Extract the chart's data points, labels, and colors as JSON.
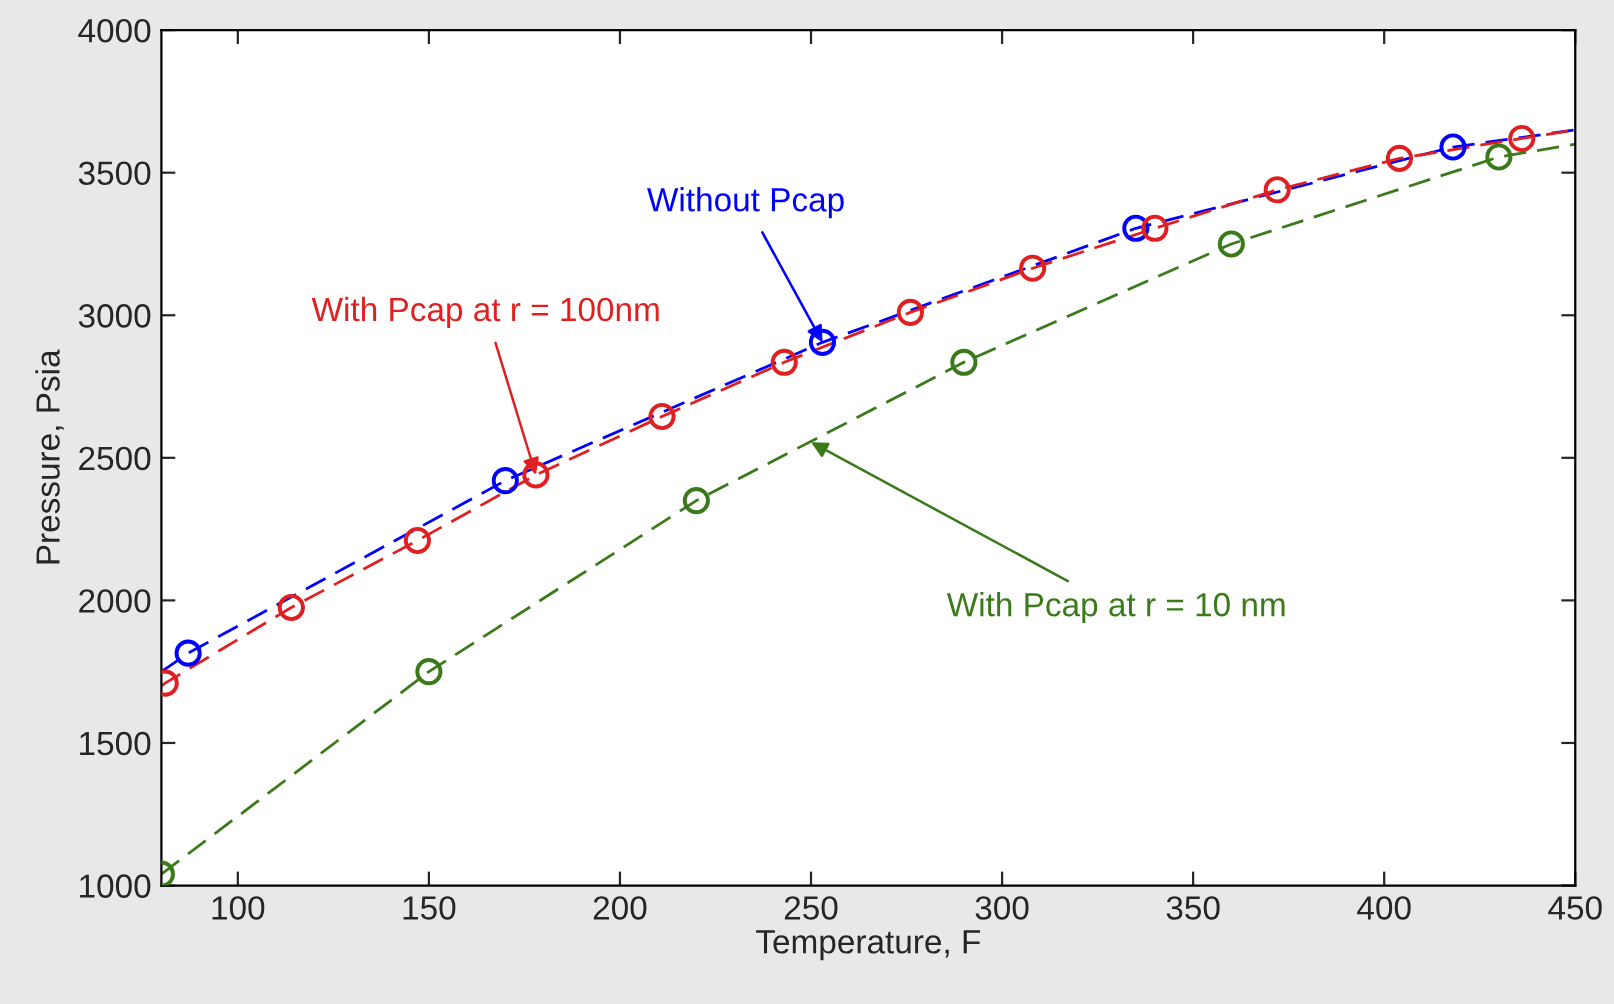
{
  "chart_data": {
    "type": "line",
    "xlabel": "Temperature, F",
    "ylabel": "Pressure, Psia",
    "xlim": [
      80,
      450
    ],
    "ylim": [
      1000,
      4000
    ],
    "xticks": [
      100,
      150,
      200,
      250,
      300,
      350,
      400,
      450
    ],
    "yticks": [
      1000,
      1500,
      2000,
      2500,
      3000,
      3500,
      4000
    ],
    "grid": false,
    "legend": false,
    "line_style": "dashed",
    "marker": "none",
    "series": [
      {
        "color": "#0000ff",
        "x": [
          80,
          87,
          170,
          253,
          335,
          418,
          450
        ],
        "values": [
          1750,
          1815,
          2420,
          2905,
          3305,
          3590,
          3650
        ]
      },
      {
        "color": "#e02020",
        "x": [
          80,
          81,
          114,
          147,
          178,
          211,
          243,
          276,
          308,
          340,
          372,
          404,
          436,
          450
        ],
        "values": [
          1700,
          1710,
          1975,
          2210,
          2440,
          2645,
          2835,
          3010,
          3165,
          3305,
          3440,
          3550,
          3620,
          3650
        ]
      },
      {
        "color": "#3a7a1a",
        "x": [
          80,
          150,
          220,
          290,
          360,
          430,
          450
        ],
        "values": [
          1040,
          1750,
          2350,
          2835,
          3250,
          3555,
          3600
        ]
      },
      {
        "type": "scatter",
        "marker": "circle",
        "color": "#0000ff",
        "x": [
          87,
          170,
          253,
          335,
          418
        ],
        "values": [
          1815,
          2420,
          2905,
          3305,
          3590
        ]
      },
      {
        "type": "scatter",
        "marker": "circle",
        "color": "#e02020",
        "x": [
          81,
          114,
          147,
          178,
          211,
          243,
          276,
          308,
          340,
          372,
          404,
          436
        ],
        "values": [
          1710,
          1975,
          2210,
          2440,
          2645,
          2835,
          3010,
          3165,
          3305,
          3440,
          3550,
          3620
        ]
      },
      {
        "type": "scatter",
        "marker": "circle",
        "color": "#3a7a1a",
        "x": [
          80,
          150,
          220,
          290,
          360,
          430
        ],
        "values": [
          1040,
          1750,
          2350,
          2835,
          3250,
          3555
        ]
      }
    ],
    "annotations": [
      {
        "text": "Without Pcap",
        "x": 253,
        "y": 2905
      },
      {
        "text": "With Pcap at r = 100nm",
        "x": 178,
        "y": 2440
      },
      {
        "text": "With Pcap at r = 10 nm",
        "x": 250,
        "y": 2555
      }
    ]
  }
}
